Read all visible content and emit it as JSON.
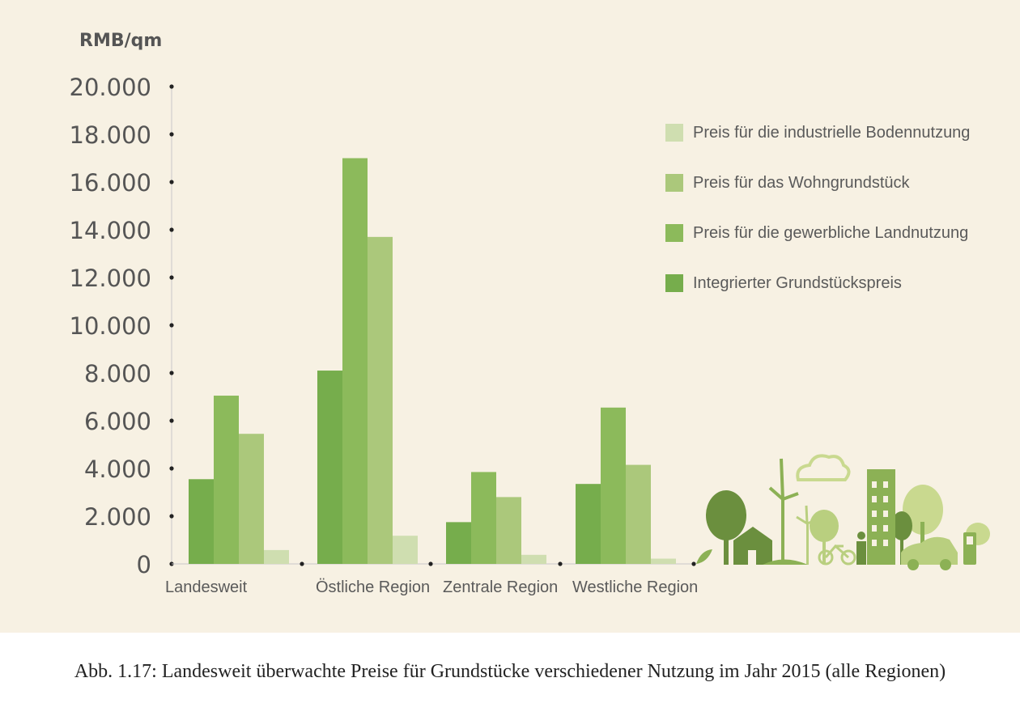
{
  "chart_data": {
    "type": "bar",
    "ylabel": "RMB/qm",
    "ylim": [
      0,
      20000
    ],
    "yticks": [
      "0",
      "2.000",
      "4.000",
      "6.000",
      "8.000",
      "10.000",
      "12.000",
      "14.000",
      "16.000",
      "18.000",
      "20.000"
    ],
    "categories": [
      "Landesweit",
      "Östliche Region",
      "Zentrale Region",
      "Westliche Region"
    ],
    "series": [
      {
        "name": "Integrierter Grundstückspreis",
        "color": "#76ad4c",
        "values": [
          3550,
          8100,
          1750,
          3350
        ]
      },
      {
        "name": "Preis für die gewerbliche Landnutzung",
        "color": "#8cba5b",
        "values": [
          7050,
          17000,
          3850,
          6550
        ]
      },
      {
        "name": "Preis für das Wohngrundstück",
        "color": "#abc87b",
        "values": [
          5450,
          13700,
          2800,
          4150
        ]
      },
      {
        "name": "Preis für die industrielle Bodennutzung",
        "color": "#cfdeb0",
        "values": [
          580,
          1180,
          380,
          220
        ]
      }
    ],
    "legend_order": [
      3,
      2,
      1,
      0
    ],
    "legend_position": "top-right"
  },
  "caption": "Abb. 1.17: Landesweit überwachte Preise für Grundstücke verschiedener Nutzung im Jahr 2015 (alle Regionen)",
  "decoration": {
    "icon": "green-city-illustration-icon",
    "colors": [
      "#6b8f3e",
      "#8cb155",
      "#b9cf7f",
      "#d2dfae"
    ]
  }
}
